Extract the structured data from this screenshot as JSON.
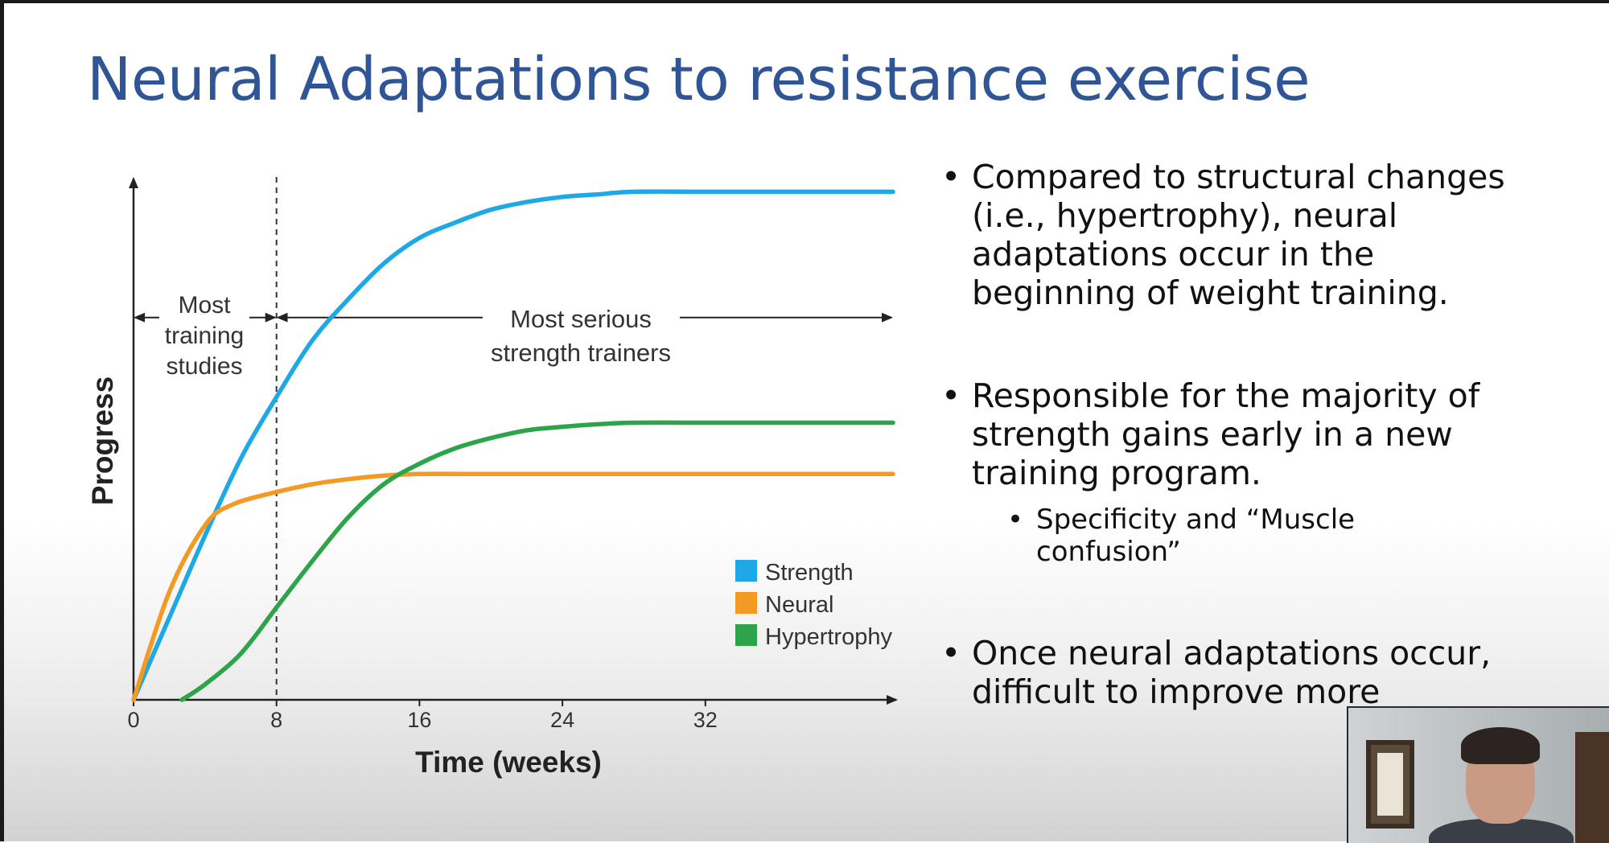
{
  "slide": {
    "title": "Neural Adaptations to resistance exercise",
    "bullets": [
      {
        "lines": [
          "Compared to structural changes",
          "(i.e., hypertrophy), neural",
          "adaptations occur in the",
          "beginning of weight training."
        ]
      },
      {
        "lines": [
          "Responsible for the majority of",
          "strength gains early in a new",
          "training program."
        ],
        "sub": [
          "Specificity and “Muscle",
          "confusion”"
        ]
      },
      {
        "lines": [
          "Once neural  adaptations occur,",
          "difficult to improve more"
        ]
      }
    ]
  },
  "chart_data": {
    "type": "line",
    "title": "",
    "xlabel": "Time (weeks)",
    "ylabel": "Progress",
    "xlim": [
      0,
      42.5
    ],
    "ylim": [
      0,
      100
    ],
    "xticks": [
      0,
      8,
      16,
      24,
      32
    ],
    "xtick_labels": [
      "0",
      "8",
      "16",
      "24",
      "32"
    ],
    "grid": false,
    "legend": {
      "position": "bottom-right"
    },
    "series": [
      {
        "name": "Strength",
        "color": "#1ea8e6",
        "x": [
          0,
          2,
          4,
          6,
          8,
          10,
          12,
          14,
          16,
          18,
          20,
          22,
          24,
          26,
          28,
          32,
          36,
          42.5
        ],
        "y": [
          0,
          16,
          32,
          47,
          59,
          70,
          78,
          85,
          90,
          93,
          95.5,
          97,
          98,
          98.5,
          99,
          99,
          99,
          99
        ]
      },
      {
        "name": "Neural",
        "color": "#f39a25",
        "x": [
          0,
          2,
          4,
          5.5,
          8,
          10,
          12,
          14,
          16,
          20,
          24,
          32,
          42.5
        ],
        "y": [
          0,
          21,
          34,
          38,
          40.5,
          42,
          43,
          43.7,
          44,
          44,
          44,
          44,
          44
        ]
      },
      {
        "name": "Hypertrophy",
        "color": "#2ea44a",
        "x": [
          2.7,
          4,
          6,
          8,
          10,
          12,
          14,
          16,
          18,
          20,
          22,
          24,
          26,
          28,
          32,
          42.5
        ],
        "y": [
          0,
          3,
          9,
          18,
          27,
          35.5,
          42,
          46,
          49,
          51,
          52.5,
          53.2,
          53.7,
          54,
          54,
          54
        ]
      }
    ],
    "divider": {
      "x": 8,
      "style": "dashed"
    },
    "annotations": [
      {
        "text_lines": [
          "Most",
          "training",
          "studies"
        ],
        "x_range": [
          0,
          8
        ],
        "y": 74.5
      },
      {
        "text_lines": [
          "Most serious",
          "strength trainers"
        ],
        "x_range": [
          8,
          42.5
        ],
        "y": 74.5
      }
    ]
  }
}
